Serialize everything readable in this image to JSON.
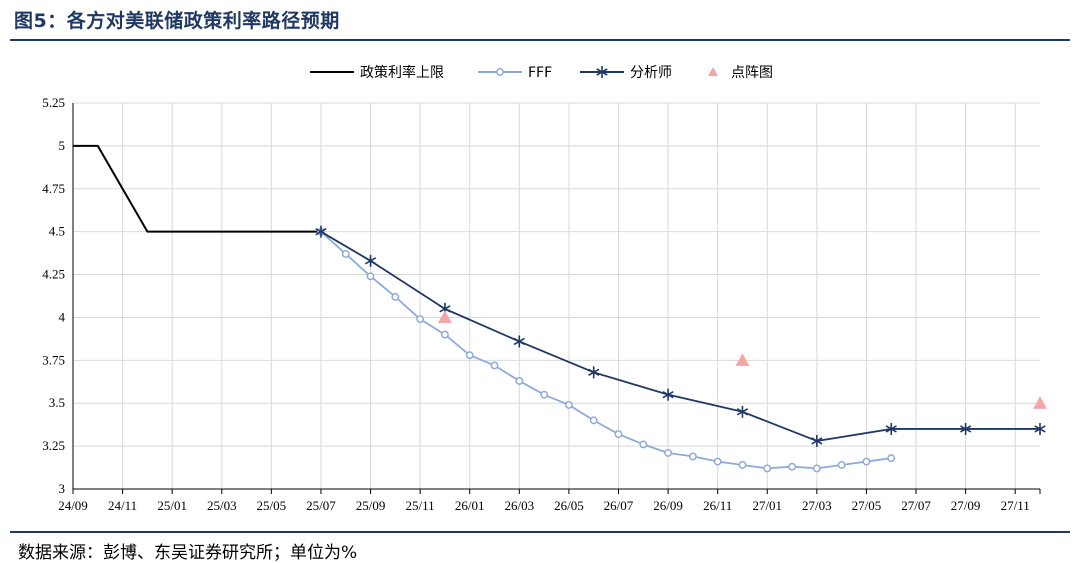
{
  "title": "图5：各方对美联储政策利率路径预期",
  "source": "数据来源：彭博、东吴证券研究所；单位为%",
  "chart_data": {
    "type": "line",
    "x_ticks": [
      "24/09",
      "24/11",
      "25/01",
      "25/03",
      "25/05",
      "25/07",
      "25/09",
      "25/11",
      "26/01",
      "26/03",
      "26/05",
      "26/07",
      "26/09",
      "26/11",
      "27/01",
      "27/03",
      "27/05",
      "27/07",
      "27/09",
      "27/11"
    ],
    "y_ticks": [
      "3",
      "3.25",
      "3.5",
      "3.75",
      "4",
      "4.25",
      "4.5",
      "4.75",
      "5",
      "5.25"
    ],
    "ylim": [
      3,
      5.25
    ],
    "grid": true,
    "legend_position": "top",
    "series": [
      {
        "name": "政策利率上限",
        "style": "line",
        "color": "#000000",
        "points": [
          {
            "x": "24/09",
            "y": 5.0
          },
          {
            "x": "24/10",
            "y": 5.0
          },
          {
            "x": "24/12",
            "y": 4.5
          },
          {
            "x": "25/01",
            "y": 4.5
          },
          {
            "x": "25/03",
            "y": 4.5
          },
          {
            "x": "25/05",
            "y": 4.5
          },
          {
            "x": "25/07",
            "y": 4.5
          }
        ]
      },
      {
        "name": "FFF",
        "style": "line-circle",
        "color": "#8eaadb",
        "points": [
          {
            "x": "25/07",
            "y": 4.5
          },
          {
            "x": "25/08",
            "y": 4.37
          },
          {
            "x": "25/09",
            "y": 4.24
          },
          {
            "x": "25/10",
            "y": 4.12
          },
          {
            "x": "25/11",
            "y": 3.99
          },
          {
            "x": "25/12",
            "y": 3.9
          },
          {
            "x": "26/01",
            "y": 3.78
          },
          {
            "x": "26/02",
            "y": 3.72
          },
          {
            "x": "26/03",
            "y": 3.63
          },
          {
            "x": "26/04",
            "y": 3.55
          },
          {
            "x": "26/05",
            "y": 3.49
          },
          {
            "x": "26/06",
            "y": 3.4
          },
          {
            "x": "26/07",
            "y": 3.32
          },
          {
            "x": "26/08",
            "y": 3.26
          },
          {
            "x": "26/09",
            "y": 3.21
          },
          {
            "x": "26/10",
            "y": 3.19
          },
          {
            "x": "26/11",
            "y": 3.16
          },
          {
            "x": "26/12",
            "y": 3.14
          },
          {
            "x": "27/01",
            "y": 3.12
          },
          {
            "x": "27/02",
            "y": 3.13
          },
          {
            "x": "27/03",
            "y": 3.12
          },
          {
            "x": "27/04",
            "y": 3.14
          },
          {
            "x": "27/05",
            "y": 3.16
          },
          {
            "x": "27/06",
            "y": 3.18
          }
        ]
      },
      {
        "name": "分析师",
        "style": "line-star",
        "color": "#1f3864",
        "points": [
          {
            "x": "25/07",
            "y": 4.5
          },
          {
            "x": "25/09",
            "y": 4.33
          },
          {
            "x": "25/12",
            "y": 4.05
          },
          {
            "x": "26/03",
            "y": 3.86
          },
          {
            "x": "26/06",
            "y": 3.68
          },
          {
            "x": "26/09",
            "y": 3.55
          },
          {
            "x": "26/12",
            "y": 3.45
          },
          {
            "x": "27/03",
            "y": 3.28
          },
          {
            "x": "27/06",
            "y": 3.35
          },
          {
            "x": "27/09",
            "y": 3.35
          },
          {
            "x": "27/12",
            "y": 3.35
          }
        ]
      },
      {
        "name": "点阵图",
        "style": "triangle",
        "color": "#f4a6a6",
        "points": [
          {
            "x": "25/12",
            "y": 4.0
          },
          {
            "x": "26/12",
            "y": 3.75
          },
          {
            "x": "27/12",
            "y": 3.5
          }
        ]
      }
    ]
  }
}
